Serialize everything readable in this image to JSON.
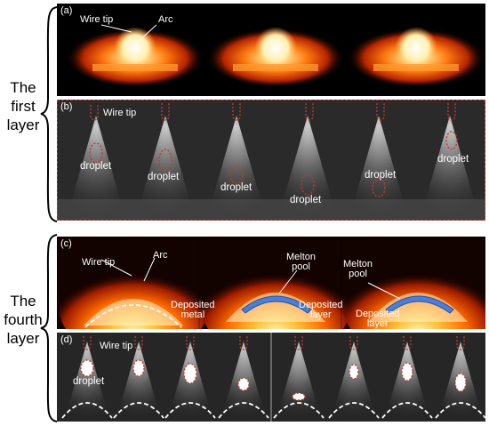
{
  "side_labels": {
    "first": "The\nfirst\nlayer",
    "fourth": "The\nfourth\nlayer"
  },
  "panel_a": {
    "tag": "(a)",
    "wire_tip": "Wire tip",
    "arc": "Arc"
  },
  "panel_b": {
    "tag": "(b)",
    "wire_tip": "Wire tip",
    "droplet": "droplet"
  },
  "panel_c": {
    "tag": "(c)",
    "wire_tip": "Wire tip",
    "arc": "Arc",
    "deposited_metal": "Deposited\nmetal",
    "melton_pool": "Melton\npool",
    "deposited_layer": "Deposited\nlayer"
  },
  "panel_d": {
    "tag": "(d)",
    "wire_tip": "Wire tip",
    "droplet": "droplet"
  },
  "colors": {
    "annotation_red": "#c0392b",
    "pool_blue": "#4a7fd6",
    "arc_glow": "#ff6a00"
  }
}
